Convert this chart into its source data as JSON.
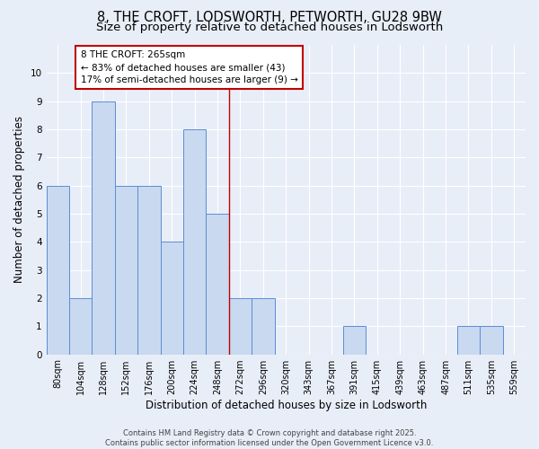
{
  "title": "8, THE CROFT, LODSWORTH, PETWORTH, GU28 9BW",
  "subtitle": "Size of property relative to detached houses in Lodsworth",
  "xlabel": "Distribution of detached houses by size in Lodsworth",
  "ylabel": "Number of detached properties",
  "categories": [
    "80sqm",
    "104sqm",
    "128sqm",
    "152sqm",
    "176sqm",
    "200sqm",
    "224sqm",
    "248sqm",
    "272sqm",
    "296sqm",
    "320sqm",
    "343sqm",
    "367sqm",
    "391sqm",
    "415sqm",
    "439sqm",
    "463sqm",
    "487sqm",
    "511sqm",
    "535sqm",
    "559sqm"
  ],
  "values": [
    6,
    2,
    9,
    6,
    6,
    4,
    8,
    5,
    2,
    2,
    0,
    0,
    0,
    1,
    0,
    0,
    0,
    0,
    1,
    1,
    0
  ],
  "bar_color": "#c9d9f0",
  "bar_edge_color": "#5b8dd4",
  "highlight_line_index": 7.5,
  "highlight_color": "#c00000",
  "annotation_text": "8 THE CROFT: 265sqm\n← 83% of detached houses are smaller (43)\n17% of semi-detached houses are larger (9) →",
  "annotation_box_color": "#ffffff",
  "annotation_box_edge_color": "#c00000",
  "ylim": [
    0,
    11
  ],
  "yticks": [
    0,
    1,
    2,
    3,
    4,
    5,
    6,
    7,
    8,
    9,
    10,
    11
  ],
  "background_color": "#e8eef8",
  "footer": "Contains HM Land Registry data © Crown copyright and database right 2025.\nContains public sector information licensed under the Open Government Licence v3.0.",
  "title_fontsize": 10.5,
  "subtitle_fontsize": 9.5,
  "xlabel_fontsize": 8.5,
  "ylabel_fontsize": 8.5,
  "tick_fontsize": 7,
  "annotation_fontsize": 7.5,
  "footer_fontsize": 6
}
